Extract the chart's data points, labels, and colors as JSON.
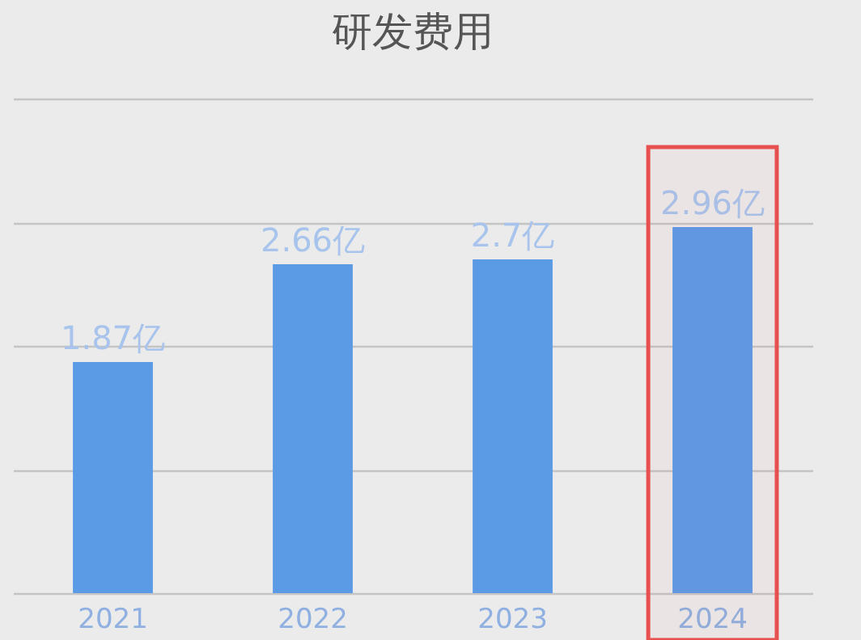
{
  "chart_data": {
    "type": "bar",
    "title": "研发费用",
    "categories": [
      "2021",
      "2022",
      "2023",
      "2024"
    ],
    "values": [
      1.87,
      2.66,
      2.7,
      2.96
    ],
    "value_labels": [
      "1.87亿",
      "2.66亿",
      "2.7亿",
      "2.96亿"
    ],
    "color": "#5b9be6",
    "ylim": [
      0,
      4
    ],
    "yticks": [
      {
        "value": 0,
        "label": null
      },
      {
        "value": 1,
        "label": null
      },
      {
        "value": 2,
        "label": null
      },
      {
        "value": 3,
        "label": null
      },
      {
        "value": 4,
        "label": null
      }
    ],
    "grid": "y",
    "tick_labels": "x",
    "bands": [
      {
        "axis": "x",
        "from": "2024",
        "to": "2024",
        "color": "#e85050"
      }
    ]
  }
}
